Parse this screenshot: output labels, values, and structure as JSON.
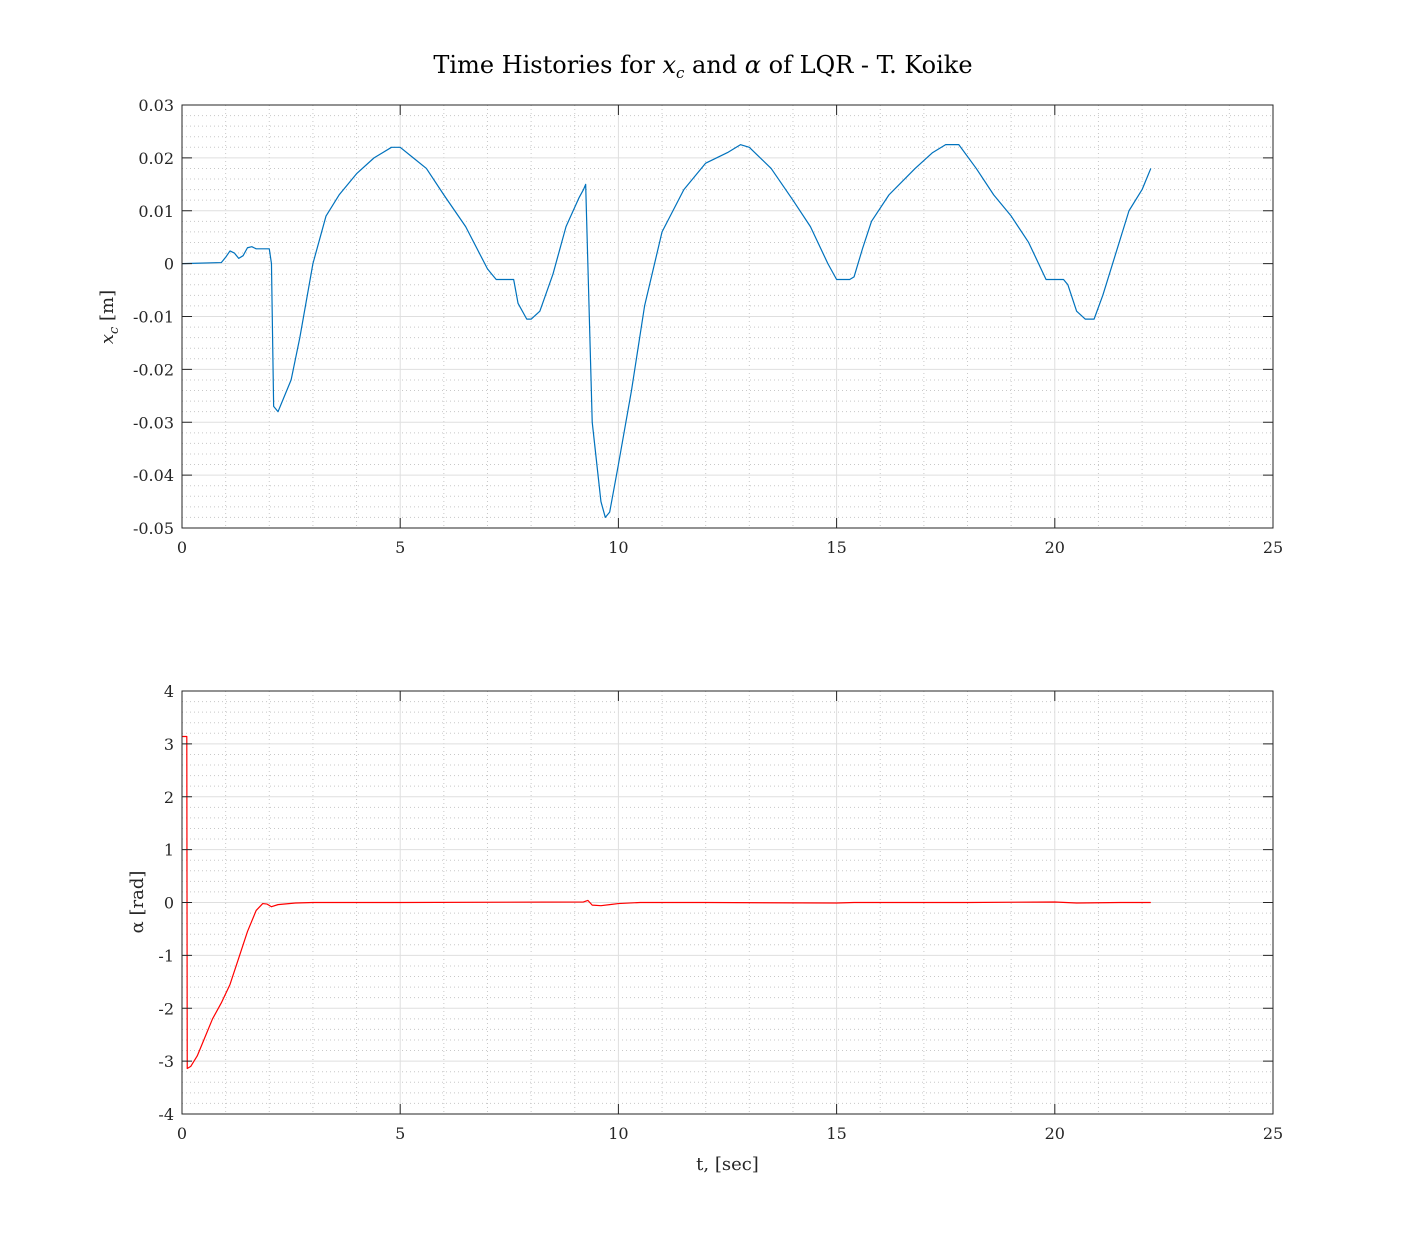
{
  "figure": {
    "title_parts": [
      "Time Histories for ",
      "x",
      "c",
      " and ",
      "α",
      " of LQR - T. Koike"
    ]
  },
  "chart_data": [
    {
      "type": "line",
      "title": "Time Histories for x_c and α of LQR - T. Koike",
      "xlabel": "",
      "ylabel": "x_c [m]",
      "ylabel_parts": [
        "x",
        "c",
        " [m]"
      ],
      "xlim": [
        0,
        25
      ],
      "ylim": [
        -0.05,
        0.03
      ],
      "xticks": [
        0,
        5,
        10,
        15,
        20,
        25
      ],
      "xtick_labels": [
        "0",
        "5",
        "10",
        "15",
        "20",
        "25"
      ],
      "yticks": [
        -0.05,
        -0.04,
        -0.03,
        -0.02,
        -0.01,
        0,
        0.01,
        0.02,
        0.03
      ],
      "ytick_labels": [
        "-0.05",
        "-0.04",
        "-0.03",
        "-0.02",
        "-0.01",
        "0",
        "0.01",
        "0.02",
        "0.03"
      ],
      "grid": "major and minor",
      "color": "#0072bd",
      "series": [
        {
          "x": [
            0,
            0.9,
            1.0,
            1.1,
            1.2,
            1.3,
            1.4,
            1.5,
            1.6,
            1.7,
            2.0,
            2.05,
            2.1,
            2.2,
            2.3,
            2.5,
            2.7,
            3.0,
            3.3,
            3.6,
            4.0,
            4.4,
            4.8,
            5.0,
            5.3,
            5.6,
            6.0,
            6.5,
            7.0,
            7.1,
            7.2,
            7.5,
            7.6,
            7.7,
            7.9,
            8.0,
            8.2,
            8.5,
            8.8,
            9.1,
            9.2,
            9.25,
            9.3,
            9.4,
            9.6,
            9.7,
            9.8,
            10.0,
            10.3,
            10.6,
            11.0,
            11.5,
            12.0,
            12.5,
            12.8,
            13.0,
            13.5,
            14.0,
            14.4,
            14.8,
            15.0,
            15.3,
            15.4,
            15.6,
            15.8,
            16.2,
            16.8,
            17.2,
            17.5,
            17.8,
            18.2,
            18.6,
            19.0,
            19.4,
            19.8,
            20.0,
            20.2,
            20.3,
            20.5,
            20.7,
            20.9,
            21.1,
            21.4,
            21.7,
            22.0,
            22.2
          ],
          "y": [
            0,
            0.0002,
            0.0012,
            0.0024,
            0.002,
            0.001,
            0.0015,
            0.003,
            0.0032,
            0.0028,
            0.0028,
            0.0,
            -0.027,
            -0.028,
            -0.026,
            -0.022,
            -0.014,
            0.0,
            0.009,
            0.013,
            0.017,
            0.02,
            0.022,
            0.022,
            0.02,
            0.018,
            0.013,
            0.007,
            -0.001,
            -0.002,
            -0.003,
            -0.003,
            -0.003,
            -0.0075,
            -0.0105,
            -0.0105,
            -0.009,
            -0.002,
            0.007,
            0.0125,
            0.014,
            0.015,
            0.0,
            -0.03,
            -0.045,
            -0.048,
            -0.047,
            -0.038,
            -0.024,
            -0.008,
            0.006,
            0.014,
            0.019,
            0.021,
            0.0225,
            0.022,
            0.018,
            0.012,
            0.007,
            0.0,
            -0.003,
            -0.003,
            -0.0025,
            0.003,
            0.008,
            0.013,
            0.018,
            0.021,
            0.0225,
            0.0225,
            0.018,
            0.013,
            0.009,
            0.004,
            -0.003,
            -0.003,
            -0.003,
            -0.004,
            -0.009,
            -0.0105,
            -0.0105,
            -0.006,
            0.002,
            0.01,
            0.014,
            0.018
          ]
        }
      ]
    },
    {
      "type": "line",
      "xlabel": "t, [sec]",
      "ylabel": "α [rad]",
      "xlim": [
        0,
        25
      ],
      "ylim": [
        -4,
        4
      ],
      "xticks": [
        0,
        5,
        10,
        15,
        20,
        25
      ],
      "xtick_labels": [
        "0",
        "5",
        "10",
        "15",
        "20",
        "25"
      ],
      "yticks": [
        -4,
        -3,
        -2,
        -1,
        0,
        1,
        2,
        3,
        4
      ],
      "ytick_labels": [
        "-4",
        "-3",
        "-2",
        "-1",
        "0",
        "1",
        "2",
        "3",
        "4"
      ],
      "grid": "major and minor",
      "color": "#ff0000",
      "series": [
        {
          "x": [
            0,
            0.11,
            0.12,
            0.2,
            0.35,
            0.5,
            0.7,
            0.9,
            1.1,
            1.3,
            1.5,
            1.7,
            1.85,
            1.95,
            2.05,
            2.2,
            2.6,
            3.0,
            5.0,
            9.2,
            9.3,
            9.4,
            9.6,
            9.8,
            10.0,
            10.5,
            12.0,
            15.0,
            15.4,
            18.0,
            20.0,
            20.5,
            21.5,
            22.2
          ],
          "y": [
            3.14,
            3.14,
            -3.14,
            -3.1,
            -2.9,
            -2.6,
            -2.2,
            -1.9,
            -1.55,
            -1.05,
            -0.55,
            -0.15,
            -0.02,
            -0.03,
            -0.08,
            -0.04,
            -0.01,
            0,
            0,
            0.01,
            0.04,
            -0.05,
            -0.06,
            -0.04,
            -0.02,
            0,
            0,
            -0.01,
            0,
            0,
            0.01,
            -0.01,
            0,
            0
          ]
        }
      ]
    }
  ]
}
